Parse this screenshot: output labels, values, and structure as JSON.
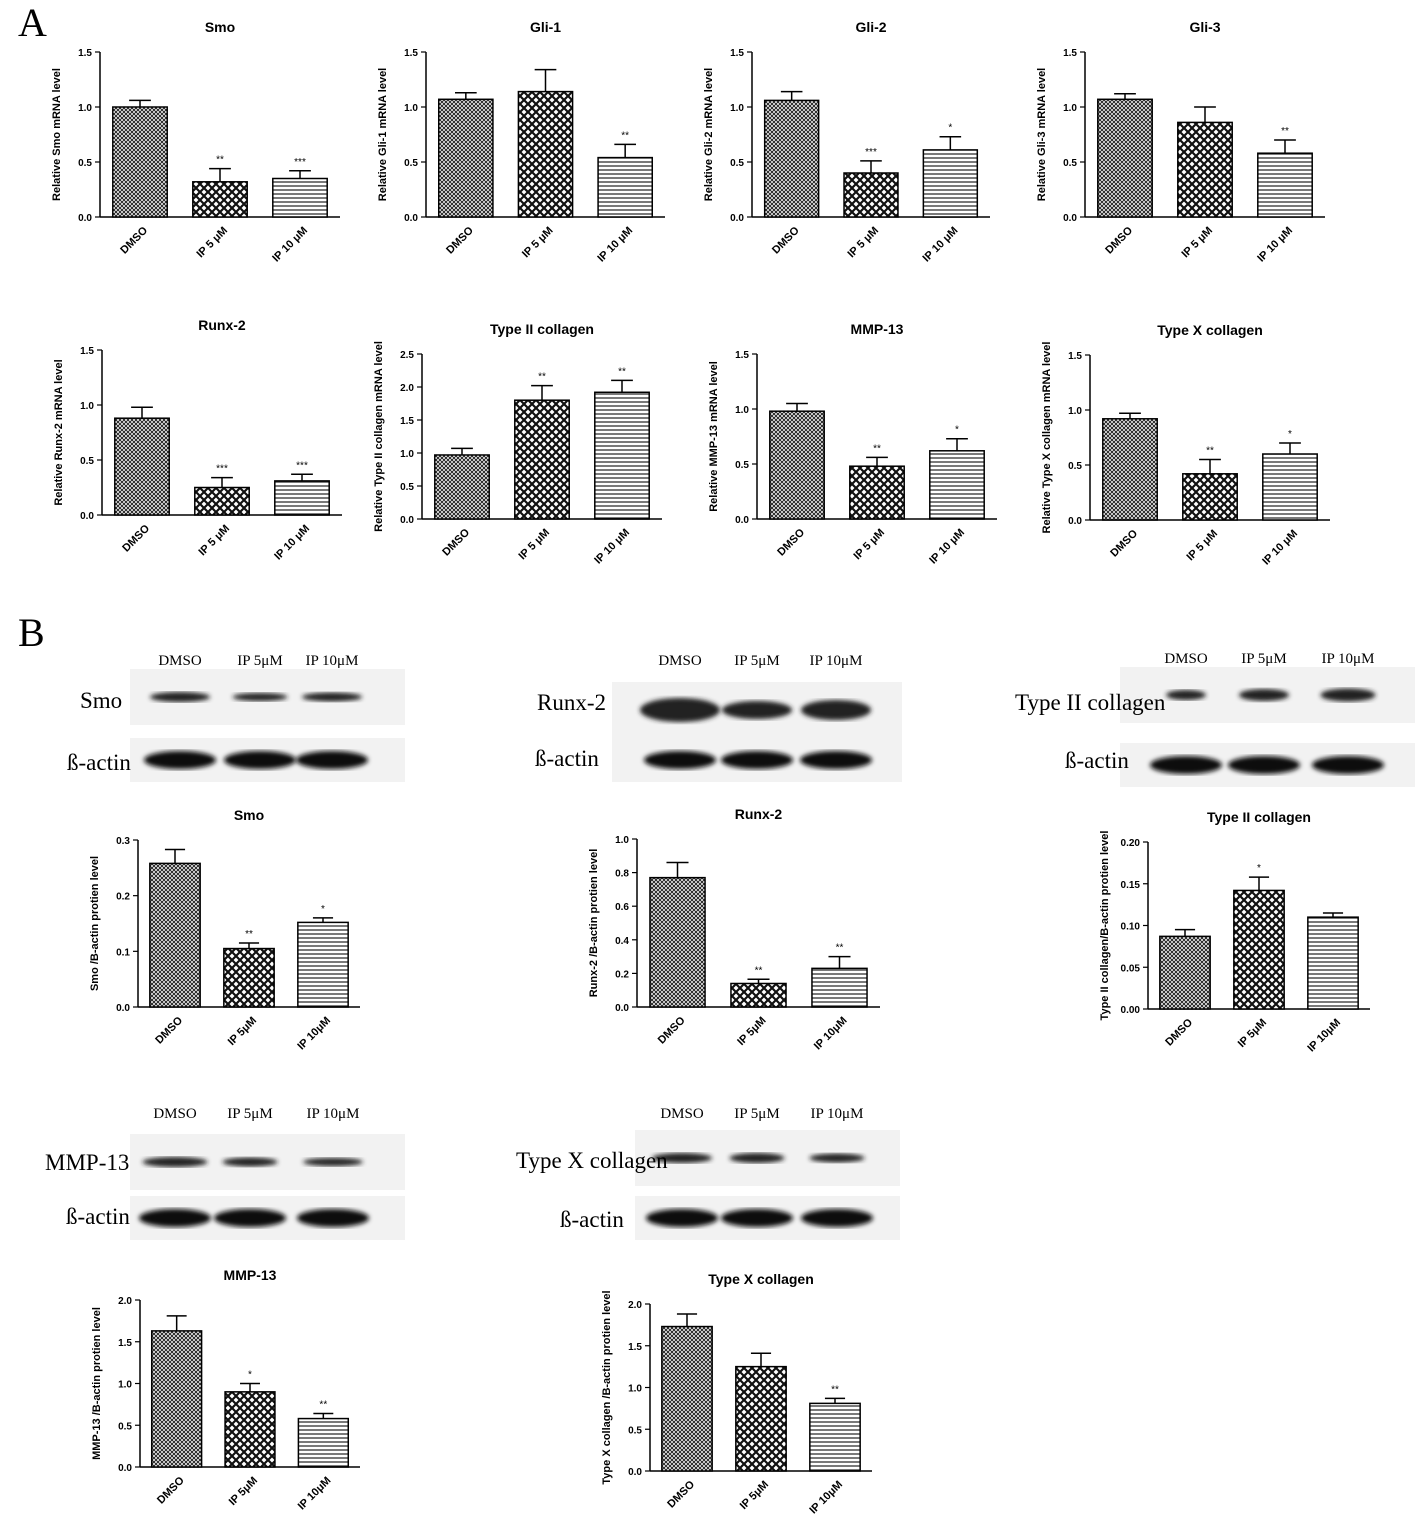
{
  "panels": [
    "A",
    "B"
  ],
  "blots": [
    {
      "target": "Smo",
      "lanes": [
        "DMSO",
        "IP 5μM",
        "IP 10μM"
      ],
      "control": "ß-actin"
    },
    {
      "target": "Runx-2",
      "lanes": [
        "DMSO",
        "IP 5μM",
        "IP 10μM"
      ],
      "control": "ß-actin"
    },
    {
      "target": "Type II collagen",
      "lanes": [
        "DMSO",
        "IP 5μM",
        "IP 10μM"
      ],
      "control": "ß-actin"
    },
    {
      "target": "MMP-13",
      "lanes": [
        "DMSO",
        "IP 5μM",
        "IP 10μM"
      ],
      "control": "ß-actin"
    },
    {
      "target": "Type X collagen",
      "lanes": [
        "DMSO",
        "IP 5μM",
        "IP 10μM"
      ],
      "control": "ß-actin"
    }
  ],
  "chart_data": [
    {
      "type": "bar",
      "title": "Smo",
      "ylabel": "Relative Smo mRNA level",
      "categories": [
        "DMSO",
        "IP 5 μM",
        "IP 10 μM"
      ],
      "values": [
        1.0,
        0.32,
        0.35
      ],
      "errors": [
        0.06,
        0.12,
        0.07
      ],
      "annotations": [
        null,
        "**",
        "***"
      ],
      "ylim": [
        0,
        1.5
      ],
      "yticks": [
        {
          "value": 0,
          "label": "0.0"
        },
        0.5,
        {
          "value": 1,
          "label": "1.0"
        },
        1.5
      ]
    },
    {
      "type": "bar",
      "title": "Gli-1",
      "ylabel": "Relative Gli-1 mRNA level",
      "categories": [
        "DMSO",
        "IP 5 μM",
        "IP 10 μM"
      ],
      "values": [
        1.07,
        1.14,
        0.54
      ],
      "errors": [
        0.06,
        0.2,
        0.12
      ],
      "annotations": [
        null,
        null,
        "**"
      ],
      "ylim": [
        0,
        1.5
      ],
      "yticks": [
        {
          "value": 0,
          "label": "0.0"
        },
        0.5,
        {
          "value": 1,
          "label": "1.0"
        },
        1.5
      ]
    },
    {
      "type": "bar",
      "title": "Gli-2",
      "ylabel": "Relative Gli-2 mRNA level",
      "categories": [
        "DMSO",
        "IP 5 μM",
        "IP 10 μM"
      ],
      "values": [
        1.06,
        0.4,
        0.61
      ],
      "errors": [
        0.08,
        0.11,
        0.12
      ],
      "annotations": [
        null,
        "***",
        "*"
      ],
      "ylim": [
        0,
        1.5
      ],
      "yticks": [
        {
          "value": 0,
          "label": "0.0"
        },
        0.5,
        {
          "value": 1,
          "label": "1.0"
        },
        1.5
      ]
    },
    {
      "type": "bar",
      "title": "Gli-3",
      "ylabel": "Relative Gli-3 mRNA level",
      "categories": [
        "DMSO",
        "IP 5 μM",
        "IP 10 μM"
      ],
      "values": [
        1.07,
        0.86,
        0.58
      ],
      "errors": [
        0.05,
        0.14,
        0.12
      ],
      "annotations": [
        null,
        null,
        "**"
      ],
      "ylim": [
        0,
        1.5
      ],
      "yticks": [
        {
          "value": 0,
          "label": "0.0"
        },
        0.5,
        {
          "value": 1,
          "label": "1.0"
        },
        1.5
      ]
    },
    {
      "type": "bar",
      "title": "Runx-2",
      "ylabel": "Relative Runx-2 mRNA level",
      "categories": [
        "DMSO",
        "IP 5 μM",
        "IP 10 μM"
      ],
      "values": [
        0.88,
        0.25,
        0.31
      ],
      "errors": [
        0.1,
        0.09,
        0.06
      ],
      "annotations": [
        null,
        "***",
        "***"
      ],
      "ylim": [
        0,
        1.5
      ],
      "yticks": [
        {
          "value": 0,
          "label": "0.0"
        },
        0.5,
        {
          "value": 1,
          "label": "1.0"
        },
        1.5
      ]
    },
    {
      "type": "bar",
      "title": "Type II collagen",
      "ylabel": "Relative Type II collagen mRNA level",
      "categories": [
        "DMSO",
        "IP 5 μM",
        "IP 10 μM"
      ],
      "values": [
        0.97,
        1.8,
        1.92
      ],
      "errors": [
        0.1,
        0.22,
        0.18
      ],
      "annotations": [
        null,
        "**",
        "**"
      ],
      "ylim": [
        0,
        2.5
      ],
      "yticks": [
        {
          "value": 0,
          "label": "0.0"
        },
        0.5,
        {
          "value": 1,
          "label": "1.0"
        },
        1.5,
        {
          "value": 2,
          "label": "2.0"
        },
        2.5
      ]
    },
    {
      "type": "bar",
      "title": "MMP-13",
      "ylabel": "Relative MMP-13 mRNA level",
      "categories": [
        "DMSO",
        "IP 5 μM",
        "IP 10 μM"
      ],
      "values": [
        0.98,
        0.48,
        0.62
      ],
      "errors": [
        0.07,
        0.08,
        0.11
      ],
      "annotations": [
        null,
        "**",
        "*"
      ],
      "ylim": [
        0,
        1.5
      ],
      "yticks": [
        {
          "value": 0,
          "label": "0.0"
        },
        0.5,
        {
          "value": 1,
          "label": "1.0"
        },
        1.5
      ]
    },
    {
      "type": "bar",
      "title": "Type X collagen",
      "ylabel": "Relative Type X collagen mRNA level",
      "categories": [
        "DMSO",
        "IP 5 μM",
        "IP 10 μM"
      ],
      "values": [
        0.92,
        0.42,
        0.6
      ],
      "errors": [
        0.05,
        0.13,
        0.1
      ],
      "annotations": [
        null,
        "**",
        "*"
      ],
      "ylim": [
        0,
        1.5
      ],
      "yticks": [
        {
          "value": 0,
          "label": "0.0"
        },
        0.5,
        {
          "value": 1,
          "label": "1.0"
        },
        1.5
      ]
    },
    {
      "type": "bar",
      "title": "Smo",
      "ylabel": "Smo /B-actin protien level",
      "categories": [
        "DMSO",
        "IP 5μM",
        "IP 10μM"
      ],
      "values": [
        0.258,
        0.105,
        0.152
      ],
      "errors": [
        0.025,
        0.01,
        0.008
      ],
      "annotations": [
        null,
        "**",
        "*"
      ],
      "ylim": [
        0,
        0.3
      ],
      "yticks": [
        {
          "value": 0,
          "label": "0.0"
        },
        0.1,
        0.2,
        0.3
      ]
    },
    {
      "type": "bar",
      "title": "Runx-2",
      "ylabel": "Runx-2 /B-actin protien level",
      "categories": [
        "DMSO",
        "IP 5μM",
        "IP 10μM"
      ],
      "values": [
        0.77,
        0.14,
        0.23
      ],
      "errors": [
        0.09,
        0.025,
        0.07
      ],
      "annotations": [
        null,
        "**",
        "**"
      ],
      "ylim": [
        0,
        1.0
      ],
      "yticks": [
        {
          "value": 0,
          "label": "0.0"
        },
        0.2,
        0.4,
        0.6,
        0.8,
        {
          "value": 1,
          "label": "1.0"
        }
      ]
    },
    {
      "type": "bar",
      "title": "Type II collagen",
      "ylabel": "Type II collagen/B-actin protien level",
      "categories": [
        "DMSO",
        "IP 5μM",
        "IP 10μM"
      ],
      "values": [
        0.087,
        0.142,
        0.11
      ],
      "errors": [
        0.008,
        0.016,
        0.005
      ],
      "annotations": [
        null,
        "*",
        null
      ],
      "ylim": [
        0,
        0.2
      ],
      "yticks": [
        {
          "value": 0,
          "label": "0.00"
        },
        0.05,
        {
          "value": 0.1,
          "label": "0.10"
        },
        0.15,
        {
          "value": 0.2,
          "label": "0.20"
        }
      ]
    },
    {
      "type": "bar",
      "title": "MMP-13",
      "ylabel": "MMP-13 /B-actin protien level",
      "categories": [
        "DMSO",
        "IP 5μM",
        "IP 10μM"
      ],
      "values": [
        1.63,
        0.9,
        0.58
      ],
      "errors": [
        0.18,
        0.1,
        0.06
      ],
      "annotations": [
        null,
        "*",
        "**"
      ],
      "ylim": [
        0,
        2.0
      ],
      "yticks": [
        {
          "value": 0,
          "label": "0.0"
        },
        0.5,
        {
          "value": 1,
          "label": "1.0"
        },
        1.5,
        {
          "value": 2,
          "label": "2.0"
        }
      ]
    },
    {
      "type": "bar",
      "title": "Type X collagen",
      "ylabel": "Type X collagen /B-actin protien level",
      "categories": [
        "DMSO",
        "IP 5μM",
        "IP 10μM"
      ],
      "values": [
        1.73,
        1.25,
        0.81
      ],
      "errors": [
        0.15,
        0.16,
        0.06
      ],
      "annotations": [
        null,
        null,
        "**"
      ],
      "ylim": [
        0,
        2.0
      ],
      "yticks": [
        {
          "value": 0,
          "label": "0.0"
        },
        0.5,
        {
          "value": 1,
          "label": "1.0"
        },
        1.5,
        {
          "value": 2,
          "label": "2.0"
        }
      ]
    }
  ]
}
